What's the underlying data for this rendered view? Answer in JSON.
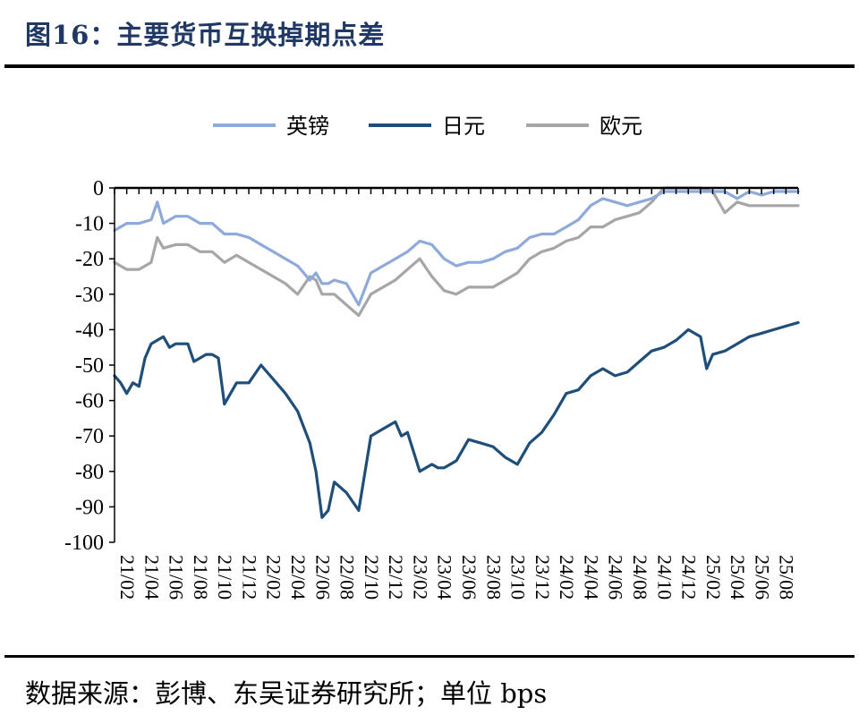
{
  "header": {
    "title": "图16：主要货币互换掉期点差"
  },
  "footer": {
    "source": "数据来源：彭博、东吴证券研究所；单位 bps"
  },
  "chart_data": {
    "type": "line",
    "title": "图16：主要货币互换掉期点差",
    "ylim": [
      -100,
      0
    ],
    "yticks": [
      0,
      -10,
      -20,
      -30,
      -40,
      -50,
      -60,
      -70,
      -80,
      -90,
      -100
    ],
    "xlim": [
      0,
      56
    ],
    "xticks": [
      "21/02",
      "21/04",
      "21/06",
      "21/08",
      "21/10",
      "21/12",
      "22/02",
      "22/04",
      "22/06",
      "22/08",
      "22/10",
      "22/12",
      "23/02",
      "23/04",
      "23/06",
      "23/08",
      "23/10",
      "23/12",
      "24/02",
      "24/04",
      "24/06",
      "24/08",
      "24/10",
      "24/12",
      "25/02",
      "25/04",
      "25/06",
      "25/08"
    ],
    "legend_position": "top",
    "grid": false,
    "colors": {
      "英镑": "#8eaadb",
      "日元": "#1f4e79",
      "欧元": "#a6a6a6"
    },
    "series": [
      {
        "name": "英镑",
        "x": [
          0,
          1,
          2,
          3,
          3.5,
          4,
          5,
          6,
          7,
          8,
          9,
          10,
          11,
          12,
          13,
          14,
          15,
          16,
          16.5,
          17,
          17.5,
          18,
          19,
          20,
          21,
          22,
          23,
          24,
          25,
          26,
          27,
          28,
          29,
          30,
          31,
          32,
          33,
          34,
          35,
          36,
          37,
          38,
          39,
          40,
          41,
          42,
          43,
          44,
          45,
          46,
          47,
          48,
          49,
          50,
          51,
          52,
          53,
          54,
          55,
          56
        ],
        "y": [
          -12,
          -10,
          -10,
          -9,
          -4,
          -10,
          -8,
          -8,
          -10,
          -10,
          -13,
          -13,
          -14,
          -16,
          -18,
          -20,
          -22,
          -26,
          -24,
          -27,
          -27,
          -26,
          -27,
          -33,
          -24,
          -22,
          -20,
          -18,
          -15,
          -16,
          -20,
          -22,
          -21,
          -21,
          -20,
          -18,
          -17,
          -14,
          -13,
          -13,
          -11,
          -9,
          -5,
          -3,
          -4,
          -5,
          -4,
          -3,
          -1,
          -1,
          -1,
          -1,
          -1,
          -1,
          -3,
          -1,
          -2,
          -1,
          -1,
          -1
        ]
      },
      {
        "name": "日元",
        "x": [
          0,
          0.5,
          1,
          1.5,
          2,
          2.5,
          3,
          4,
          4.5,
          5,
          6,
          6.5,
          7,
          7.5,
          8,
          8.5,
          9,
          10,
          11,
          12,
          13,
          14,
          15,
          16,
          16.5,
          17,
          17.5,
          18,
          19,
          20,
          21,
          22,
          23,
          23.5,
          24,
          25,
          26,
          26.5,
          27,
          28,
          29,
          30,
          31,
          32,
          33,
          34,
          35,
          36,
          37,
          38,
          39,
          40,
          41,
          42,
          43,
          44,
          45,
          46,
          47,
          48,
          48.5,
          49,
          50,
          51,
          52,
          53,
          54,
          55,
          56
        ],
        "y": [
          -53,
          -55,
          -58,
          -55,
          -56,
          -48,
          -44,
          -42,
          -45,
          -44,
          -44,
          -49,
          -48,
          -47,
          -47,
          -48,
          -61,
          -55,
          -55,
          -50,
          -54,
          -58,
          -63,
          -72,
          -80,
          -93,
          -91,
          -83,
          -86,
          -91,
          -70,
          -68,
          -66,
          -70,
          -69,
          -80,
          -78,
          -79,
          -79,
          -77,
          -71,
          -72,
          -73,
          -76,
          -78,
          -72,
          -69,
          -64,
          -58,
          -57,
          -53,
          -51,
          -53,
          -52,
          -49,
          -46,
          -45,
          -43,
          -40,
          -42,
          -51,
          -47,
          -46,
          -44,
          -42,
          -41,
          -40,
          -39,
          -38
        ]
      },
      {
        "name": "欧元",
        "x": [
          0,
          1,
          2,
          3,
          3.5,
          4,
          5,
          6,
          7,
          8,
          9,
          10,
          11,
          12,
          13,
          14,
          15,
          16,
          16.5,
          17,
          17.5,
          18,
          19,
          20,
          21,
          22,
          23,
          24,
          25,
          26,
          27,
          28,
          29,
          30,
          31,
          32,
          33,
          34,
          35,
          36,
          37,
          38,
          39,
          40,
          41,
          42,
          43,
          44,
          45,
          46,
          47,
          48,
          49,
          50,
          51,
          52,
          53,
          54,
          55,
          56
        ],
        "y": [
          -21,
          -23,
          -23,
          -21,
          -14,
          -17,
          -16,
          -16,
          -18,
          -18,
          -21,
          -19,
          -21,
          -23,
          -25,
          -27,
          -30,
          -25,
          -26,
          -30,
          -30,
          -30,
          -33,
          -36,
          -30,
          -28,
          -26,
          -23,
          -20,
          -25,
          -29,
          -30,
          -28,
          -28,
          -28,
          -26,
          -24,
          -20,
          -18,
          -17,
          -15,
          -14,
          -11,
          -11,
          -9,
          -8,
          -7,
          -4,
          0,
          0,
          0,
          0,
          -1,
          -7,
          -4,
          -5,
          -5,
          -5,
          -5,
          -5
        ]
      }
    ]
  }
}
